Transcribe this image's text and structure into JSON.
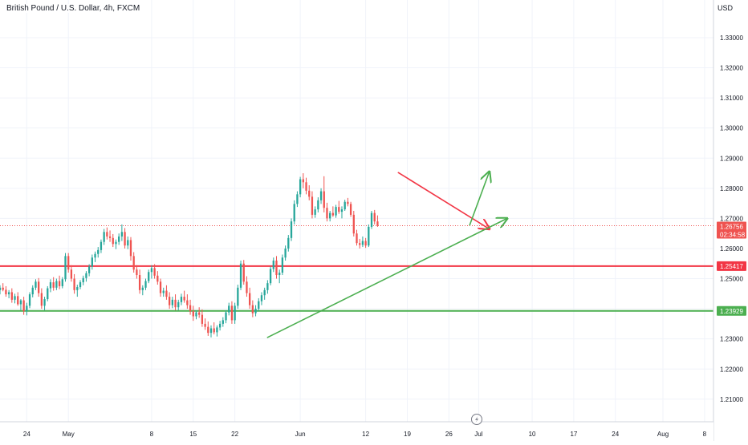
{
  "header": {
    "title": "British Pound / U.S. Dollar, 4h, FXCM",
    "currency": "USD"
  },
  "colors": {
    "up": "#26a69a",
    "down": "#ef5350",
    "grid": "#f0f3fa",
    "support_line": "#4caf50",
    "resistance_line": "#f23645",
    "trend_red": "#f23645",
    "trend_green": "#4caf50",
    "price_line": "#ef5350"
  },
  "chart_data": {
    "type": "candlestick",
    "symbol": "GBPUSD",
    "timeframe": "4h",
    "y_ticks": [
      "1.21000",
      "1.22000",
      "1.23000",
      "1.24000",
      "1.25000",
      "1.26000",
      "1.27000",
      "1.28000",
      "1.29000",
      "1.30000",
      "1.31000",
      "1.32000",
      "1.33000"
    ],
    "y_range": [
      1.2025,
      1.3425
    ],
    "x_ticks": [
      {
        "label": "24",
        "x": -5
      },
      {
        "label": "May",
        "x": 2
      },
      {
        "label": "8",
        "x": 16
      },
      {
        "label": "15",
        "x": 23
      },
      {
        "label": "22",
        "x": 30
      },
      {
        "label": "Jun",
        "x": 41
      },
      {
        "label": "12",
        "x": 52
      },
      {
        "label": "19",
        "x": 59
      },
      {
        "label": "26",
        "x": 66
      },
      {
        "label": "Jul",
        "x": 71
      },
      {
        "label": "10",
        "x": 80
      },
      {
        "label": "17",
        "x": 87
      },
      {
        "label": "24",
        "x": 94
      },
      {
        "label": "Aug",
        "x": 102
      },
      {
        "label": "8",
        "x": 109
      }
    ],
    "x_unit": "days since May 1",
    "x_range": [
      -9.5,
      110.5
    ],
    "horizontal_lines": [
      {
        "name": "resistance",
        "value": 1.25417,
        "label": "1.25417",
        "color": "#f23645"
      },
      {
        "name": "support",
        "value": 1.23929,
        "label": "1.23929",
        "color": "#4caf50"
      }
    ],
    "current_price": {
      "value": 1.26756,
      "label": "1.26756",
      "countdown": "02:34:58"
    },
    "trendlines": [
      {
        "name": "descending-trendline",
        "color": "#f23645",
        "points": [
          [
            57.5,
            1.2852
          ],
          [
            72.8,
            1.2665
          ]
        ],
        "arrow": true
      },
      {
        "name": "ascending-trendline",
        "color": "#4caf50",
        "points": [
          [
            35.5,
            1.2305
          ],
          [
            75.8,
            1.27
          ]
        ],
        "arrow": true
      },
      {
        "name": "breakout-arrow",
        "color": "#4caf50",
        "points": [
          [
            69.5,
            1.2678
          ],
          [
            72.8,
            1.2855
          ]
        ],
        "arrow": true
      }
    ],
    "candles": [
      [
        -9.5,
        1.2462,
        1.2478,
        1.2448,
        1.247
      ],
      [
        -9.0,
        1.247,
        1.2485,
        1.2458,
        1.2463
      ],
      [
        -8.5,
        1.2463,
        1.2475,
        1.244,
        1.2448
      ],
      [
        -8.0,
        1.2448,
        1.2462,
        1.2435,
        1.2455
      ],
      [
        -7.5,
        1.2455,
        1.2468,
        1.242,
        1.243
      ],
      [
        -7.0,
        1.243,
        1.245,
        1.2418,
        1.2442
      ],
      [
        -6.5,
        1.2442,
        1.2455,
        1.241,
        1.2415
      ],
      [
        -6.0,
        1.2415,
        1.2432,
        1.2395,
        1.2428
      ],
      [
        -5.5,
        1.2428,
        1.244,
        1.238,
        1.2392
      ],
      [
        -5.0,
        1.2392,
        1.242,
        1.2378,
        1.241
      ],
      [
        -4.5,
        1.241,
        1.2455,
        1.2402,
        1.2448
      ],
      [
        -4.0,
        1.2448,
        1.2478,
        1.2438,
        1.247
      ],
      [
        -3.5,
        1.247,
        1.2498,
        1.2462,
        1.249
      ],
      [
        -3.0,
        1.249,
        1.2502,
        1.244,
        1.2452
      ],
      [
        -2.5,
        1.2452,
        1.2468,
        1.24,
        1.241
      ],
      [
        -2.0,
        1.241,
        1.244,
        1.2395,
        1.2432
      ],
      [
        -1.5,
        1.2432,
        1.2475,
        1.2425,
        1.2468
      ],
      [
        -1.0,
        1.2468,
        1.2498,
        1.2455,
        1.2488
      ],
      [
        -0.5,
        1.2488,
        1.2505,
        1.246,
        1.247
      ],
      [
        0.0,
        1.247,
        1.25,
        1.2462,
        1.2492
      ],
      [
        0.5,
        1.2492,
        1.251,
        1.2465,
        1.2475
      ],
      [
        1.0,
        1.2475,
        1.2505,
        1.2468,
        1.2498
      ],
      [
        1.5,
        1.2498,
        1.2585,
        1.249,
        1.2575
      ],
      [
        2.0,
        1.2575,
        1.2585,
        1.252,
        1.253
      ],
      [
        2.5,
        1.253,
        1.2545,
        1.249,
        1.25
      ],
      [
        3.0,
        1.25,
        1.2515,
        1.245,
        1.2462
      ],
      [
        3.5,
        1.2462,
        1.248,
        1.244,
        1.2472
      ],
      [
        4.0,
        1.2472,
        1.2495,
        1.2465,
        1.2488
      ],
      [
        4.5,
        1.2488,
        1.251,
        1.2478,
        1.2502
      ],
      [
        5.0,
        1.2502,
        1.2525,
        1.249,
        1.2518
      ],
      [
        5.5,
        1.2518,
        1.2548,
        1.2508,
        1.254
      ],
      [
        6.0,
        1.254,
        1.258,
        1.253,
        1.257
      ],
      [
        6.5,
        1.257,
        1.259,
        1.2555,
        1.2582
      ],
      [
        7.0,
        1.2582,
        1.2605,
        1.257,
        1.2595
      ],
      [
        7.5,
        1.2595,
        1.263,
        1.2585,
        1.2622
      ],
      [
        8.0,
        1.2622,
        1.2665,
        1.2612,
        1.2655
      ],
      [
        8.5,
        1.2655,
        1.267,
        1.263,
        1.264
      ],
      [
        9.0,
        1.264,
        1.266,
        1.2622,
        1.2635
      ],
      [
        9.5,
        1.2635,
        1.2648,
        1.2605,
        1.2615
      ],
      [
        10.0,
        1.2615,
        1.263,
        1.2598,
        1.2622
      ],
      [
        10.5,
        1.2622,
        1.265,
        1.2612,
        1.264
      ],
      [
        11.0,
        1.264,
        1.268,
        1.2625,
        1.2655
      ],
      [
        11.5,
        1.2655,
        1.2668,
        1.26,
        1.261
      ],
      [
        12.0,
        1.261,
        1.264,
        1.2598,
        1.2628
      ],
      [
        12.5,
        1.2628,
        1.2638,
        1.256,
        1.2575
      ],
      [
        13.0,
        1.2575,
        1.2588,
        1.252,
        1.253
      ],
      [
        13.5,
        1.253,
        1.2545,
        1.25,
        1.2512
      ],
      [
        14.0,
        1.2512,
        1.253,
        1.245,
        1.2462
      ],
      [
        14.5,
        1.2462,
        1.2478,
        1.2445,
        1.247
      ],
      [
        15.0,
        1.247,
        1.25,
        1.2462,
        1.2492
      ],
      [
        15.5,
        1.2492,
        1.253,
        1.2485,
        1.2522
      ],
      [
        16.0,
        1.2522,
        1.2545,
        1.25,
        1.2535
      ],
      [
        16.5,
        1.2535,
        1.2548,
        1.25,
        1.251
      ],
      [
        17.0,
        1.251,
        1.2525,
        1.248,
        1.249
      ],
      [
        17.5,
        1.249,
        1.25,
        1.244,
        1.2452
      ],
      [
        18.0,
        1.2452,
        1.247,
        1.244,
        1.246
      ],
      [
        18.5,
        1.246,
        1.2478,
        1.243,
        1.244
      ],
      [
        19.0,
        1.244,
        1.2455,
        1.24,
        1.2412
      ],
      [
        19.5,
        1.2412,
        1.244,
        1.2402,
        1.243
      ],
      [
        20.0,
        1.243,
        1.2448,
        1.2395,
        1.2405
      ],
      [
        20.5,
        1.2405,
        1.243,
        1.2395,
        1.2422
      ],
      [
        21.0,
        1.2422,
        1.245,
        1.2412,
        1.244
      ],
      [
        21.5,
        1.244,
        1.246,
        1.242,
        1.2428
      ],
      [
        22.0,
        1.2428,
        1.2448,
        1.24,
        1.2412
      ],
      [
        22.5,
        1.2412,
        1.243,
        1.238,
        1.2392
      ],
      [
        23.0,
        1.2392,
        1.241,
        1.236,
        1.2375
      ],
      [
        23.5,
        1.2375,
        1.2395,
        1.2365,
        1.2388
      ],
      [
        24.0,
        1.2388,
        1.2405,
        1.237,
        1.238
      ],
      [
        24.5,
        1.238,
        1.2398,
        1.234,
        1.235
      ],
      [
        25.0,
        1.235,
        1.2368,
        1.233,
        1.234
      ],
      [
        25.5,
        1.234,
        1.2358,
        1.231,
        1.232
      ],
      [
        26.0,
        1.232,
        1.2345,
        1.2305,
        1.2335
      ],
      [
        26.5,
        1.2335,
        1.2355,
        1.2315,
        1.2322
      ],
      [
        27.0,
        1.2322,
        1.2345,
        1.2308,
        1.2338
      ],
      [
        27.5,
        1.2338,
        1.236,
        1.2328,
        1.235
      ],
      [
        28.0,
        1.235,
        1.2372,
        1.234,
        1.2362
      ],
      [
        28.5,
        1.2362,
        1.2395,
        1.2352,
        1.2388
      ],
      [
        29.0,
        1.2388,
        1.242,
        1.2378,
        1.241
      ],
      [
        29.5,
        1.241,
        1.2425,
        1.235,
        1.2362
      ],
      [
        30.0,
        1.2362,
        1.242,
        1.235,
        1.241
      ],
      [
        30.5,
        1.241,
        1.248,
        1.24,
        1.247
      ],
      [
        31.0,
        1.247,
        1.256,
        1.2462,
        1.255
      ],
      [
        31.5,
        1.255,
        1.2562,
        1.248,
        1.249
      ],
      [
        32.0,
        1.249,
        1.2508,
        1.244,
        1.2452
      ],
      [
        32.5,
        1.2452,
        1.247,
        1.24,
        1.2412
      ],
      [
        33.0,
        1.2412,
        1.2428,
        1.2372,
        1.2385
      ],
      [
        33.5,
        1.2385,
        1.2412,
        1.2375,
        1.24
      ],
      [
        34.0,
        1.24,
        1.2435,
        1.2392,
        1.2425
      ],
      [
        34.5,
        1.2425,
        1.2455,
        1.2412,
        1.2445
      ],
      [
        35.0,
        1.2445,
        1.247,
        1.243,
        1.2462
      ],
      [
        35.5,
        1.2462,
        1.2495,
        1.245,
        1.2485
      ],
      [
        36.0,
        1.2485,
        1.254,
        1.2478,
        1.2532
      ],
      [
        36.5,
        1.2532,
        1.257,
        1.2522,
        1.256
      ],
      [
        37.0,
        1.256,
        1.2575,
        1.25,
        1.2512
      ],
      [
        37.5,
        1.2512,
        1.253,
        1.2485,
        1.252
      ],
      [
        38.0,
        1.252,
        1.258,
        1.2512,
        1.257
      ],
      [
        38.5,
        1.257,
        1.261,
        1.256,
        1.26
      ],
      [
        39.0,
        1.26,
        1.2645,
        1.259,
        1.2635
      ],
      [
        39.5,
        1.2635,
        1.27,
        1.2625,
        1.269
      ],
      [
        40.0,
        1.269,
        1.276,
        1.268,
        1.2748
      ],
      [
        40.5,
        1.2748,
        1.279,
        1.2738,
        1.278
      ],
      [
        41.0,
        1.278,
        1.2838,
        1.277,
        1.283
      ],
      [
        41.5,
        1.283,
        1.285,
        1.28,
        1.282
      ],
      [
        42.0,
        1.282,
        1.2835,
        1.278,
        1.2792
      ],
      [
        42.5,
        1.2792,
        1.281,
        1.276,
        1.2772
      ],
      [
        43.0,
        1.2772,
        1.279,
        1.27,
        1.2712
      ],
      [
        43.5,
        1.2712,
        1.274,
        1.2702,
        1.273
      ],
      [
        44.0,
        1.273,
        1.277,
        1.272,
        1.276
      ],
      [
        44.5,
        1.276,
        1.28,
        1.2748,
        1.279
      ],
      [
        45.0,
        1.279,
        1.284,
        1.272,
        1.2735
      ],
      [
        45.5,
        1.2735,
        1.2752,
        1.269,
        1.27
      ],
      [
        46.0,
        1.27,
        1.2725,
        1.269,
        1.2718
      ],
      [
        46.5,
        1.2718,
        1.274,
        1.2705,
        1.271
      ],
      [
        47.0,
        1.271,
        1.2745,
        1.2702,
        1.2738
      ],
      [
        47.5,
        1.2738,
        1.2758,
        1.2715,
        1.2722
      ],
      [
        48.0,
        1.2722,
        1.274,
        1.27,
        1.273
      ],
      [
        48.5,
        1.273,
        1.2762,
        1.2725,
        1.2755
      ],
      [
        49.0,
        1.2755,
        1.2768,
        1.274,
        1.2748
      ],
      [
        49.5,
        1.2748,
        1.2755,
        1.2705,
        1.2712
      ],
      [
        50.0,
        1.2712,
        1.2725,
        1.264,
        1.265
      ],
      [
        50.5,
        1.265,
        1.2662,
        1.261,
        1.2618
      ],
      [
        51.0,
        1.2618,
        1.2632,
        1.26,
        1.2612
      ],
      [
        51.5,
        1.2612,
        1.264,
        1.2605,
        1.2625
      ],
      [
        52.0,
        1.2625,
        1.2635,
        1.2602,
        1.261
      ],
      [
        52.5,
        1.261,
        1.268,
        1.2605,
        1.2672
      ],
      [
        53.0,
        1.2672,
        1.2725,
        1.2665,
        1.2718
      ],
      [
        53.5,
        1.2718,
        1.2728,
        1.268,
        1.269
      ],
      [
        54.0,
        1.269,
        1.271,
        1.2672,
        1.2676
      ]
    ]
  }
}
